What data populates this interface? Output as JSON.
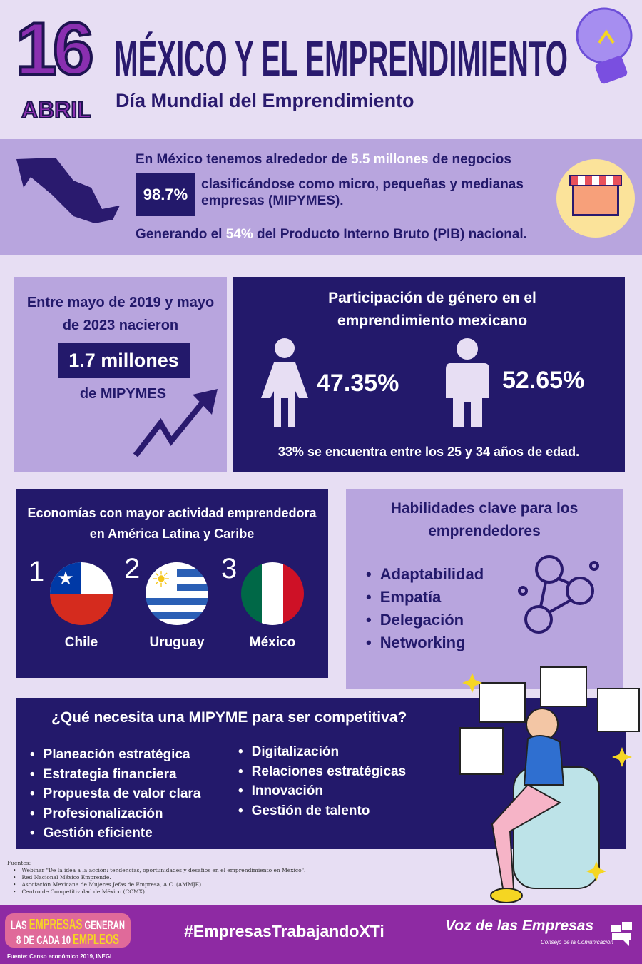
{
  "header": {
    "day": "16",
    "month": "ABRIL",
    "title": "MÉXICO Y EL EMPRENDIMIENTO",
    "subtitle": "Día Mundial del Emprendimiento"
  },
  "stats": {
    "line1_pre": "En México tenemos alrededor de ",
    "line1_hl": "5.5 millones",
    "line1_post": " de negocios",
    "badge": "98.7%",
    "line2": "clasificándose como micro, pequeñas y medianas empresas (MIPYMES).",
    "line3_pre": "Generando el ",
    "line3_hl": "54%",
    "line3_post": " del Producto Interno Bruto (PIB) nacional."
  },
  "births": {
    "text": "Entre mayo de 2019 y mayo de 2023 nacieron",
    "value": "1.7 millones",
    "unit": "de MIPYMES"
  },
  "gender": {
    "title": "Participación de género en el emprendimiento mexicano",
    "female": "47.35%",
    "male": "52.65%",
    "note": "33% se encuentra entre los 25 y 34 años de edad."
  },
  "economies": {
    "title": "Economías con mayor actividad emprendedora en América Latina y Caribe",
    "items": [
      {
        "rank": "1",
        "country": "Chile"
      },
      {
        "rank": "2",
        "country": "Uruguay"
      },
      {
        "rank": "3",
        "country": "México"
      }
    ]
  },
  "skills": {
    "title": "Habilidades clave para los emprendedores",
    "items": [
      "Adaptabilidad",
      "Empatía",
      "Delegación",
      "Networking"
    ]
  },
  "competitive": {
    "title": "¿Qué necesita una MIPYME para ser competitiva?",
    "col1": [
      "Planeación estratégica",
      "Estrategia financiera",
      "Propuesta de valor clara",
      "Profesionalización",
      "Gestión eficiente"
    ],
    "col2": [
      "Digitalización",
      "Relaciones estratégicas",
      "Innovación",
      "Gestión de talento"
    ]
  },
  "sources": {
    "label": "Fuentes:",
    "items": [
      "Webinar \"De la idea a la acción: tendencias, oportunidades y desafíos en el emprendimiento en México\".",
      "Red Nacional México Emprende.",
      "Asociación Mexicana de Mujeres Jefas de Empresa, A.C. (AMMJE)",
      "Centro de Competitividad de México (CCMX)."
    ]
  },
  "footer": {
    "badge_line1_a": "LAS ",
    "badge_line1_b": "EMPRESAS",
    "badge_line1_c": " GENERAN",
    "badge_line2_a": "8 DE CADA 10 ",
    "badge_line2_b": "EMPLEOS",
    "badge_source": "Fuente: Censo económico 2019, INEGI",
    "hashtag": "#EmpresasTrabajandoXTi",
    "brand": "Voz de las Empresas",
    "brand_sub": "Consejo de la Comunicación"
  },
  "colors": {
    "navy": "#23196b",
    "lavender": "#b8a5de",
    "purple": "#8e2aa3",
    "yellow": "#f5d622"
  }
}
